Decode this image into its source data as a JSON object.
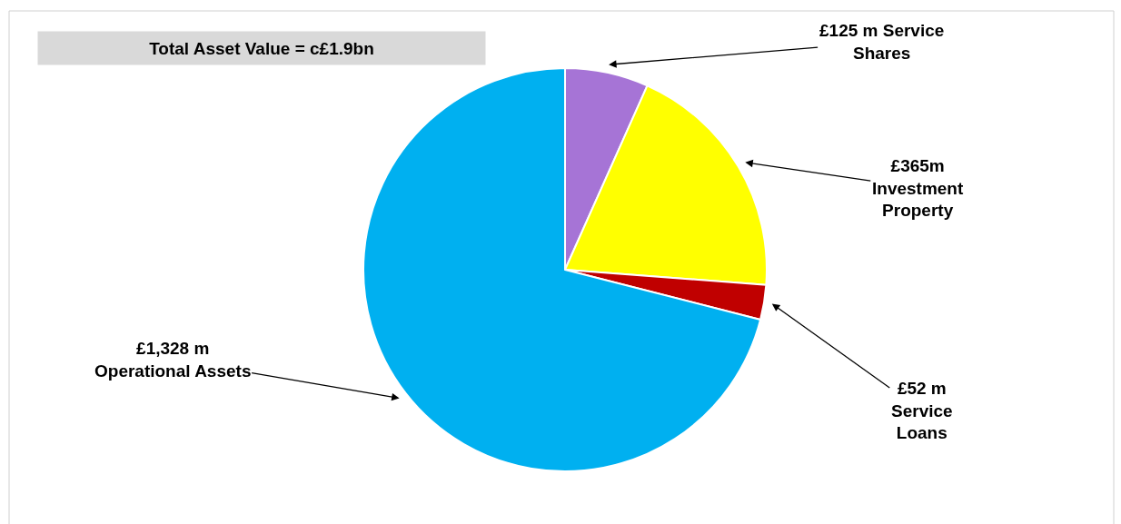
{
  "chart_data": {
    "type": "pie",
    "title": "Total Asset Value = c£1.9bn",
    "categories": [
      "£125 m Service Shares",
      "£365m Investment Property",
      "£52 m Service Loans",
      "£1,328 m Operational Assets"
    ],
    "values": [
      125,
      365,
      52,
      1328
    ],
    "colors": [
      "#a674d6",
      "#ffff00",
      "#c00000",
      "#00b0f0"
    ],
    "legend": false
  }
}
